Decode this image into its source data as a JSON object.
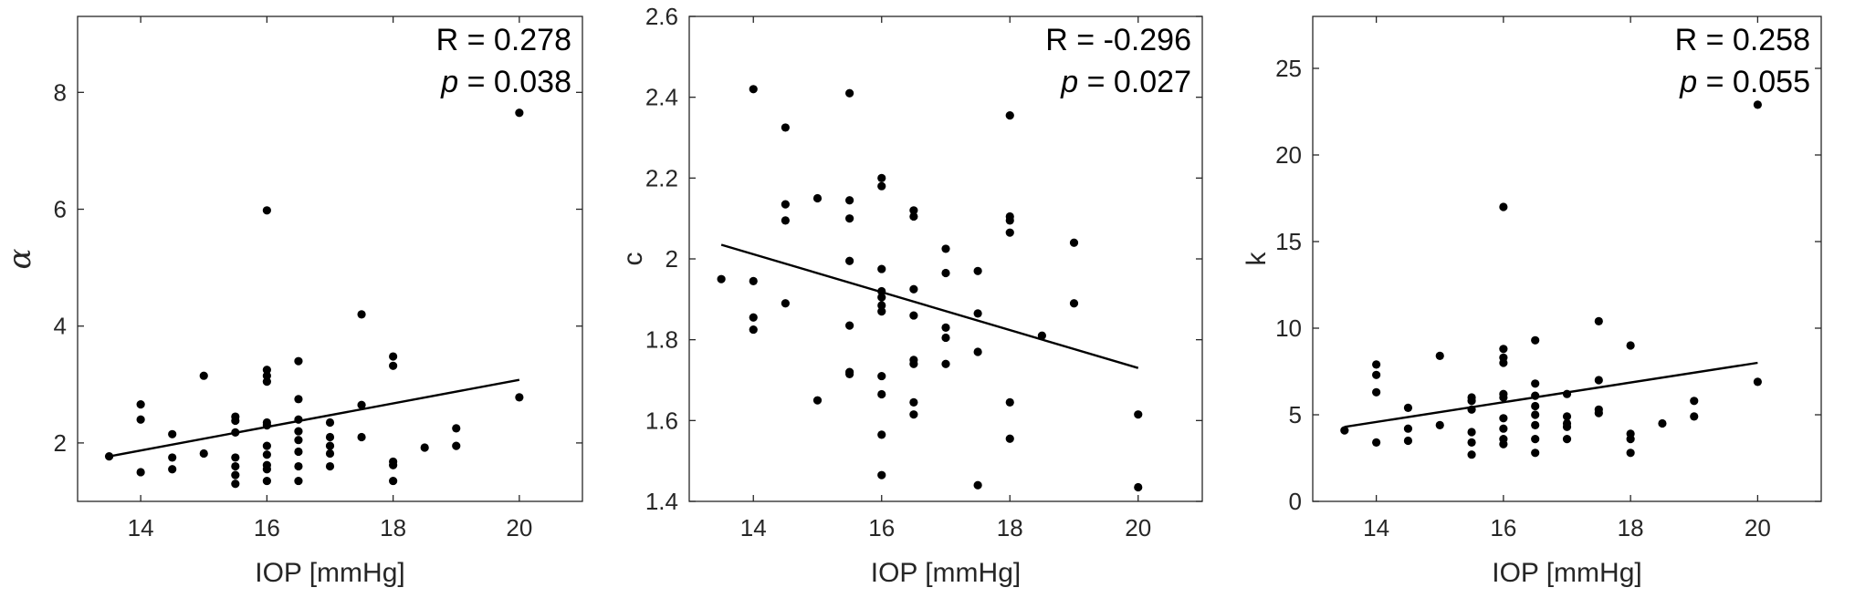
{
  "chart_data": [
    {
      "type": "scatter",
      "xlabel": "IOP [mmHg]",
      "ylabel": "α",
      "xlim": [
        13,
        21
      ],
      "ylim": [
        1,
        9.3
      ],
      "xticks": [
        14,
        16,
        18,
        20
      ],
      "yticks": [
        2,
        4,
        6,
        8
      ],
      "annotation": {
        "r_text": "R = 0.278",
        "p_letter": "p",
        "p_value": " = 0.038"
      },
      "fit_line": {
        "x": [
          13.5,
          20
        ],
        "y": [
          1.77,
          3.08
        ]
      },
      "points": [
        [
          13.5,
          1.77
        ],
        [
          14,
          2.66
        ],
        [
          14,
          2.4
        ],
        [
          14,
          1.5
        ],
        [
          14.5,
          2.15
        ],
        [
          14.5,
          1.75
        ],
        [
          14.5,
          1.55
        ],
        [
          15,
          3.15
        ],
        [
          15,
          1.82
        ],
        [
          15.5,
          2.45
        ],
        [
          15.5,
          2.38
        ],
        [
          15.5,
          2.18
        ],
        [
          15.5,
          1.75
        ],
        [
          15.5,
          1.6
        ],
        [
          15.5,
          1.45
        ],
        [
          15.5,
          1.3
        ],
        [
          16,
          5.98
        ],
        [
          16,
          3.25
        ],
        [
          16,
          3.15
        ],
        [
          16,
          3.05
        ],
        [
          16,
          2.35
        ],
        [
          16,
          2.3
        ],
        [
          16,
          1.95
        ],
        [
          16,
          1.8
        ],
        [
          16,
          1.62
        ],
        [
          16,
          1.55
        ],
        [
          16,
          1.35
        ],
        [
          16.5,
          3.4
        ],
        [
          16.5,
          2.75
        ],
        [
          16.5,
          2.4
        ],
        [
          16.5,
          2.2
        ],
        [
          16.5,
          2.05
        ],
        [
          16.5,
          1.85
        ],
        [
          16.5,
          1.6
        ],
        [
          16.5,
          1.35
        ],
        [
          17,
          2.35
        ],
        [
          17,
          2.1
        ],
        [
          17,
          1.95
        ],
        [
          17,
          1.82
        ],
        [
          17,
          1.6
        ],
        [
          17.5,
          4.2
        ],
        [
          17.5,
          2.65
        ],
        [
          17.5,
          2.1
        ],
        [
          18,
          3.48
        ],
        [
          18,
          3.32
        ],
        [
          18,
          1.68
        ],
        [
          18,
          1.62
        ],
        [
          18,
          1.35
        ],
        [
          18.5,
          1.92
        ],
        [
          19,
          2.25
        ],
        [
          19,
          1.95
        ],
        [
          20,
          7.65
        ],
        [
          20,
          2.78
        ]
      ]
    },
    {
      "type": "scatter",
      "xlabel": "IOP [mmHg]",
      "ylabel": "c",
      "xlim": [
        13,
        21
      ],
      "ylim": [
        1.4,
        2.6
      ],
      "xticks": [
        14,
        16,
        18,
        20
      ],
      "yticks": [
        1.4,
        1.6,
        1.8,
        2,
        2.2,
        2.4,
        2.6
      ],
      "ytick_labels": [
        "1.4",
        "1.6",
        "1.8",
        "2",
        "2.2",
        "2.4",
        "2.6"
      ],
      "annotation": {
        "r_text": "R = -0.296",
        "p_letter": "p",
        "p_value": " = 0.027"
      },
      "fit_line": {
        "x": [
          13.5,
          20
        ],
        "y": [
          2.035,
          1.73
        ]
      },
      "points": [
        [
          13.5,
          1.95
        ],
        [
          14,
          2.42
        ],
        [
          14,
          1.945
        ],
        [
          14,
          1.855
        ],
        [
          14,
          1.825
        ],
        [
          14.5,
          2.325
        ],
        [
          14.5,
          2.135
        ],
        [
          14.5,
          2.095
        ],
        [
          14.5,
          1.89
        ],
        [
          15,
          2.15
        ],
        [
          15,
          1.65
        ],
        [
          15.5,
          2.41
        ],
        [
          15.5,
          2.145
        ],
        [
          15.5,
          2.1
        ],
        [
          15.5,
          1.995
        ],
        [
          15.5,
          1.835
        ],
        [
          15.5,
          1.72
        ],
        [
          15.5,
          1.715
        ],
        [
          16,
          2.2
        ],
        [
          16,
          2.18
        ],
        [
          16,
          1.975
        ],
        [
          16,
          1.92
        ],
        [
          16,
          1.905
        ],
        [
          16,
          1.885
        ],
        [
          16,
          1.87
        ],
        [
          16,
          1.71
        ],
        [
          16,
          1.665
        ],
        [
          16,
          1.565
        ],
        [
          16,
          1.465
        ],
        [
          16.5,
          2.12
        ],
        [
          16.5,
          2.105
        ],
        [
          16.5,
          1.925
        ],
        [
          16.5,
          1.86
        ],
        [
          16.5,
          1.75
        ],
        [
          16.5,
          1.74
        ],
        [
          16.5,
          1.645
        ],
        [
          16.5,
          1.615
        ],
        [
          17,
          2.025
        ],
        [
          17,
          1.965
        ],
        [
          17,
          1.83
        ],
        [
          17,
          1.805
        ],
        [
          17,
          1.74
        ],
        [
          17.5,
          1.97
        ],
        [
          17.5,
          1.865
        ],
        [
          17.5,
          1.77
        ],
        [
          17.5,
          1.44
        ],
        [
          18,
          2.355
        ],
        [
          18,
          2.105
        ],
        [
          18,
          2.095
        ],
        [
          18,
          2.065
        ],
        [
          18,
          1.645
        ],
        [
          18,
          1.555
        ],
        [
          18.5,
          1.81
        ],
        [
          19,
          2.04
        ],
        [
          19,
          1.89
        ],
        [
          20,
          1.615
        ],
        [
          20,
          1.435
        ]
      ]
    },
    {
      "type": "scatter",
      "xlabel": "IOP [mmHg]",
      "ylabel": "k",
      "xlim": [
        13,
        21
      ],
      "ylim": [
        0,
        28
      ],
      "xticks": [
        14,
        16,
        18,
        20
      ],
      "yticks": [
        0,
        5,
        10,
        15,
        20,
        25
      ],
      "annotation": {
        "r_text": "R = 0.258",
        "p_letter": "p",
        "p_value": " = 0.055"
      },
      "fit_line": {
        "x": [
          13.5,
          20
        ],
        "y": [
          4.3,
          8.0
        ]
      },
      "points": [
        [
          13.5,
          4.1
        ],
        [
          14,
          7.9
        ],
        [
          14,
          7.3
        ],
        [
          14,
          6.3
        ],
        [
          14,
          3.4
        ],
        [
          14.5,
          5.4
        ],
        [
          14.5,
          4.2
        ],
        [
          14.5,
          3.5
        ],
        [
          15,
          8.4
        ],
        [
          15,
          4.4
        ],
        [
          15.5,
          6.0
        ],
        [
          15.5,
          5.8
        ],
        [
          15.5,
          5.3
        ],
        [
          15.5,
          4.0
        ],
        [
          15.5,
          3.4
        ],
        [
          15.5,
          2.7
        ],
        [
          16,
          17.0
        ],
        [
          16,
          8.8
        ],
        [
          16,
          8.3
        ],
        [
          16,
          8.0
        ],
        [
          16,
          6.2
        ],
        [
          16,
          6.0
        ],
        [
          16,
          4.8
        ],
        [
          16,
          4.2
        ],
        [
          16,
          3.6
        ],
        [
          16,
          3.3
        ],
        [
          16.5,
          9.3
        ],
        [
          16.5,
          6.8
        ],
        [
          16.5,
          6.1
        ],
        [
          16.5,
          5.5
        ],
        [
          16.5,
          5.0
        ],
        [
          16.5,
          4.4
        ],
        [
          16.5,
          3.6
        ],
        [
          16.5,
          2.8
        ],
        [
          17,
          6.2
        ],
        [
          17,
          4.9
        ],
        [
          17,
          4.5
        ],
        [
          17,
          4.3
        ],
        [
          17,
          3.6
        ],
        [
          17.5,
          10.4
        ],
        [
          17.5,
          7.0
        ],
        [
          17.5,
          5.3
        ],
        [
          17.5,
          5.1
        ],
        [
          18,
          9.0
        ],
        [
          18,
          3.9
        ],
        [
          18,
          3.6
        ],
        [
          18,
          2.8
        ],
        [
          18.5,
          4.5
        ],
        [
          19,
          5.8
        ],
        [
          19,
          4.9
        ],
        [
          20,
          22.9
        ],
        [
          20,
          6.9
        ]
      ]
    }
  ]
}
